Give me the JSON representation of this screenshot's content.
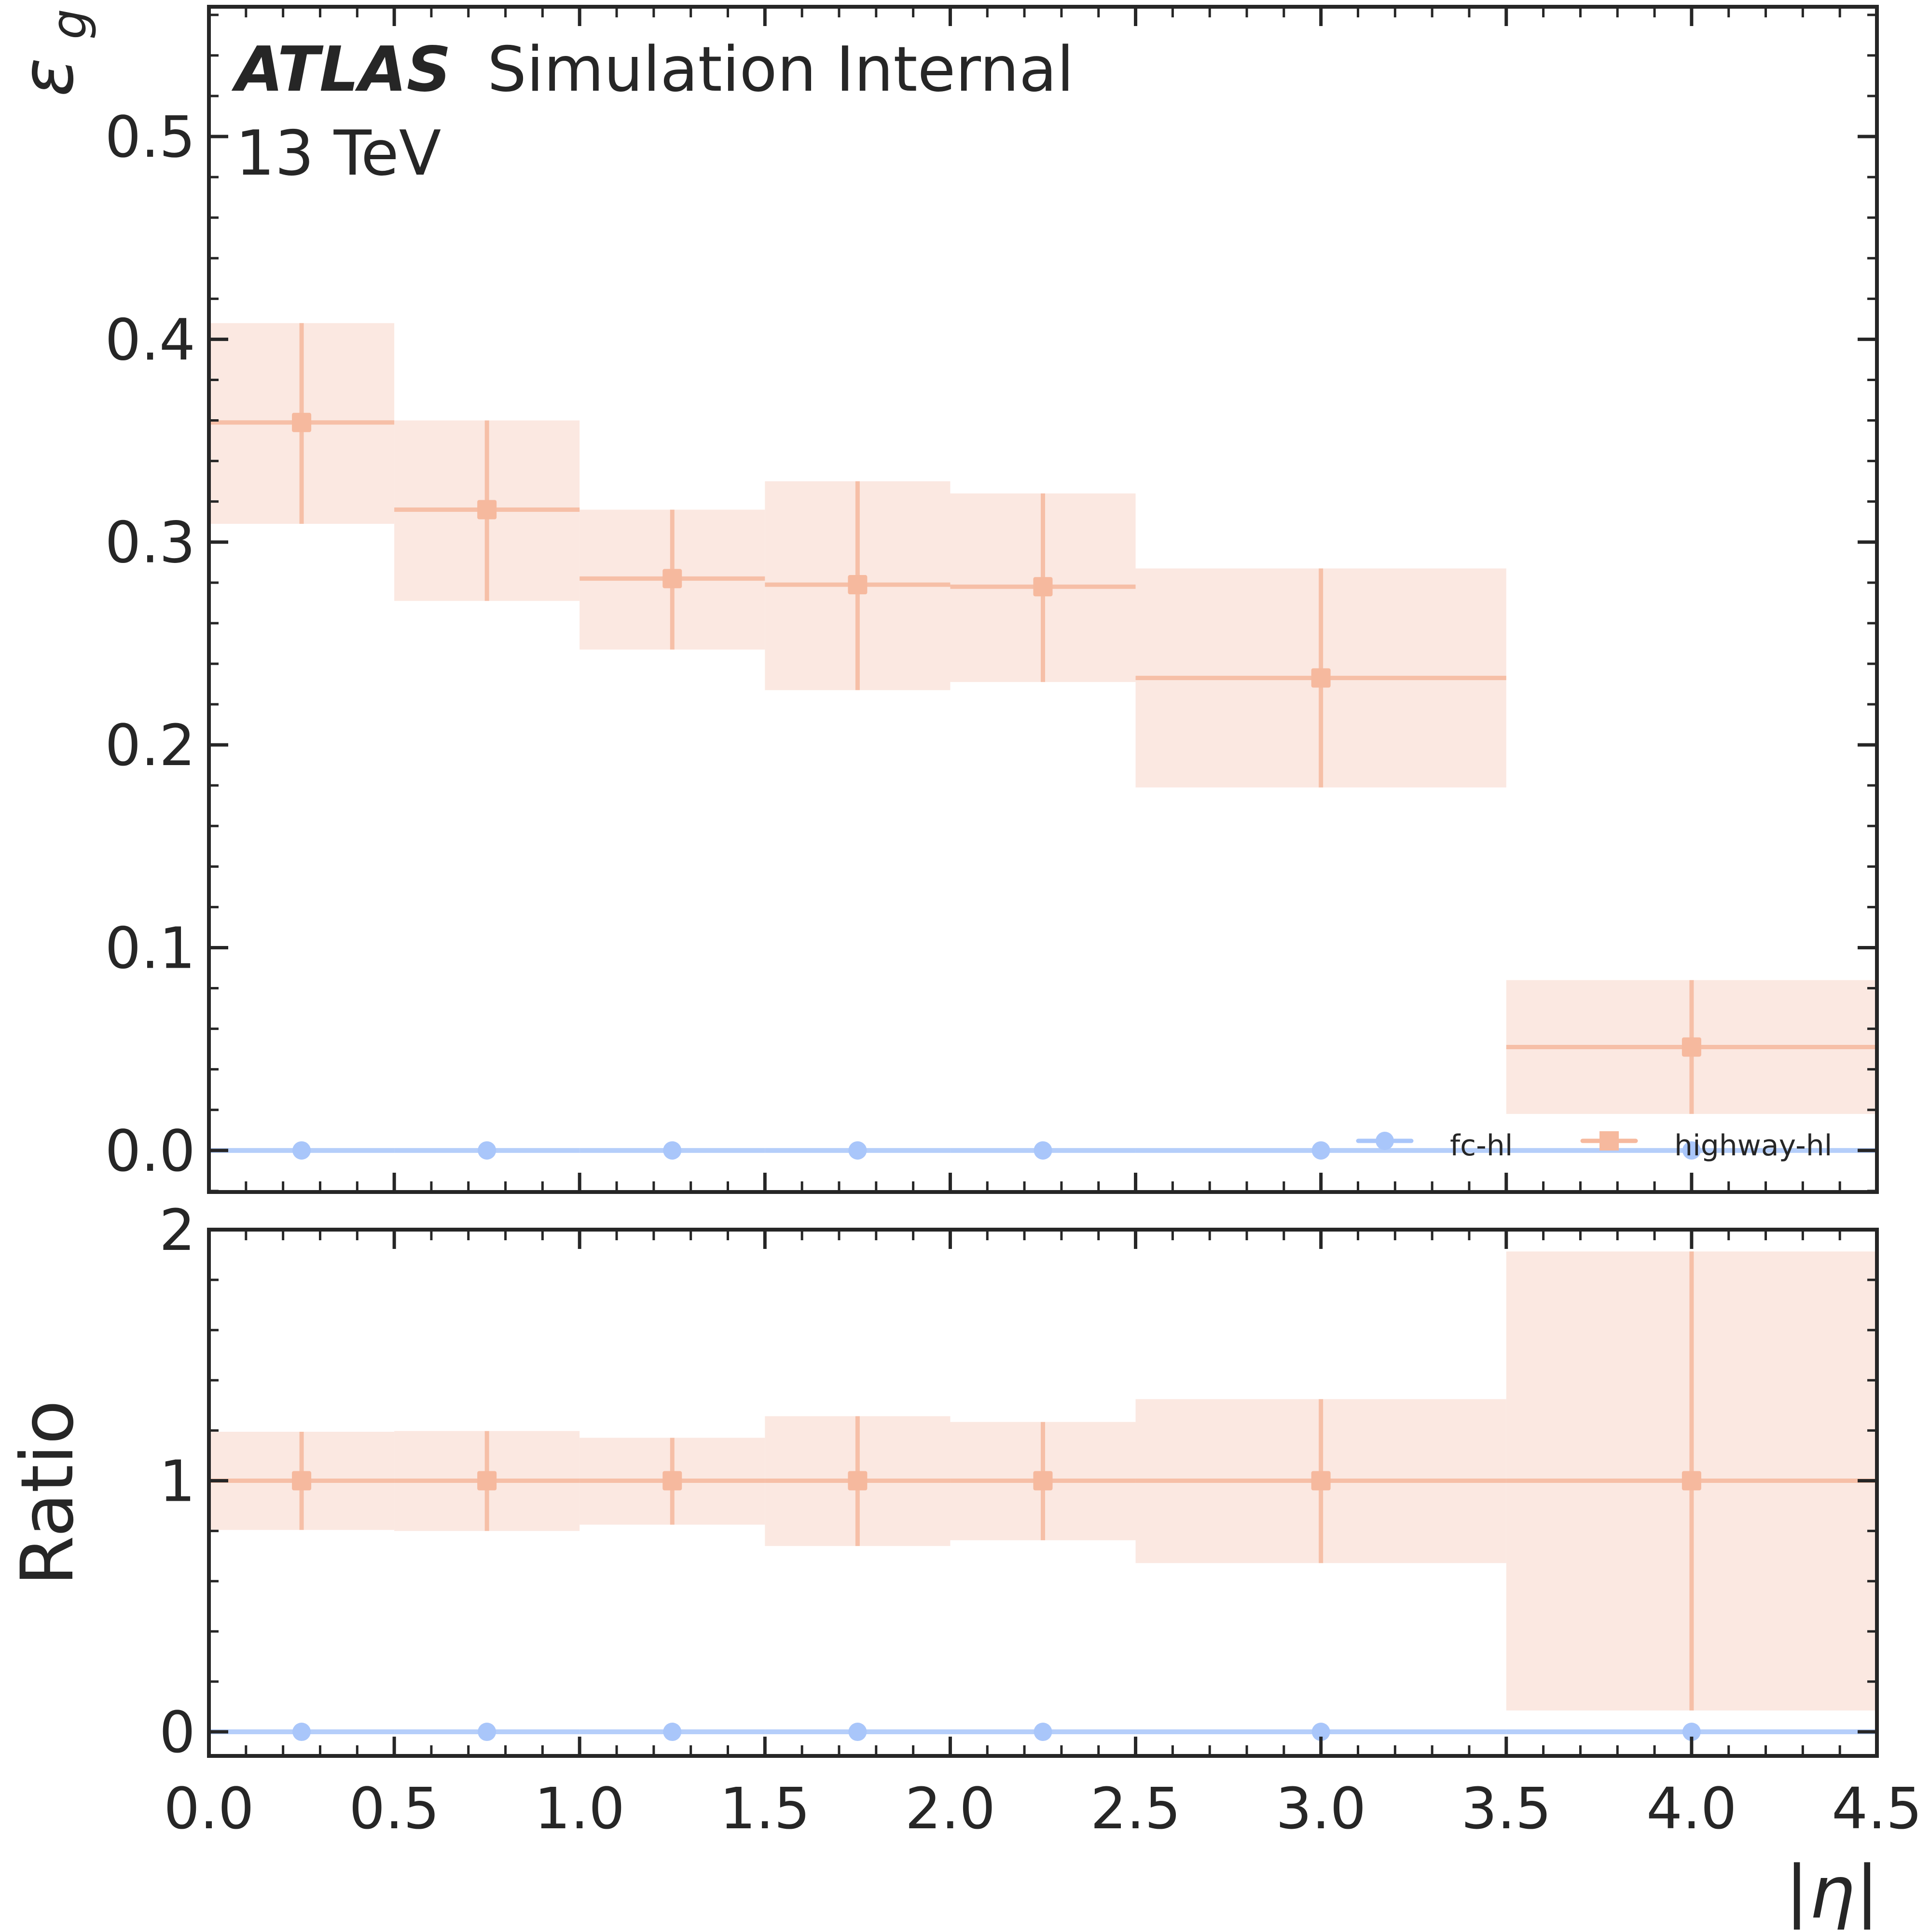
{
  "chart_data": [
    {
      "panel": "main",
      "type": "scatter",
      "title": "",
      "annotations": [
        {
          "bold_italic": "ATLAS",
          "text": "Simulation Internal"
        },
        {
          "text": "13 TeV"
        }
      ],
      "xlabel": "",
      "ylabel": "ε_g",
      "ylabel_main": "ε",
      "ylabel_sub": "g",
      "xlim": [
        0.0,
        4.5
      ],
      "ylim": [
        -0.0205,
        0.564
      ],
      "ytick_values": [
        0.0,
        0.1,
        0.2,
        0.3,
        0.4,
        0.5
      ],
      "ytick_labels": [
        "0.0",
        "0.1",
        "0.2",
        "0.3",
        "0.4",
        "0.5"
      ],
      "y_minor_step": 0.02,
      "grid": false,
      "legend": {
        "placement": "bottom-right",
        "ncols": 2,
        "entries": [
          {
            "label": "fc-hl",
            "marker": "circle",
            "color": "#a9c6fa"
          },
          {
            "label": "highway-hl",
            "marker": "square",
            "color": "#f6b99e"
          }
        ]
      },
      "bins": [
        [
          0.0,
          0.5
        ],
        [
          0.5,
          1.0
        ],
        [
          1.0,
          1.5
        ],
        [
          1.5,
          2.0
        ],
        [
          2.0,
          2.5
        ],
        [
          2.5,
          3.5
        ],
        [
          3.5,
          4.5
        ]
      ],
      "x": [
        0.25,
        0.75,
        1.25,
        1.75,
        2.25,
        3.0,
        4.0
      ],
      "series": [
        {
          "name": "fc-hl",
          "marker": "circle",
          "color": "#a9c6fa",
          "values": [
            0.0,
            0.0,
            0.0,
            0.0,
            0.0,
            0.0,
            0.0
          ],
          "err_low": [
            0.0,
            0.0,
            0.0,
            0.0,
            0.0,
            0.0,
            0.0
          ],
          "err_high": [
            0.0,
            0.0,
            0.0,
            0.0,
            0.0,
            0.0,
            0.0
          ]
        },
        {
          "name": "highway-hl",
          "marker": "square",
          "color": "#f6b99e",
          "band_color": "#fbe8e1",
          "values": [
            0.359,
            0.316,
            0.282,
            0.279,
            0.278,
            0.233,
            0.051
          ],
          "band_low": [
            0.309,
            0.271,
            0.247,
            0.227,
            0.231,
            0.179,
            0.018
          ],
          "band_high": [
            0.408,
            0.36,
            0.316,
            0.33,
            0.324,
            0.287,
            0.084
          ]
        }
      ]
    },
    {
      "panel": "ratio",
      "type": "scatter",
      "xlabel": "|η|",
      "ylabel": "Ratio",
      "xlim": [
        0.0,
        4.5
      ],
      "ylim": [
        -0.096,
        2.0
      ],
      "xtick_values": [
        0.0,
        0.5,
        1.0,
        1.5,
        2.0,
        2.5,
        3.0,
        3.5,
        4.0,
        4.5
      ],
      "xtick_labels": [
        "0.0",
        "0.5",
        "1.0",
        "1.5",
        "2.0",
        "2.5",
        "3.0",
        "3.5",
        "4.0",
        "4.5"
      ],
      "x_minor_step": 0.1,
      "ytick_values": [
        0,
        1,
        2
      ],
      "ytick_labels": [
        "0",
        "1",
        "2"
      ],
      "y_minor_step": 0.2,
      "grid": false,
      "bins": [
        [
          0.0,
          0.5
        ],
        [
          0.5,
          1.0
        ],
        [
          1.0,
          1.5
        ],
        [
          1.5,
          2.0
        ],
        [
          2.0,
          2.5
        ],
        [
          2.5,
          3.5
        ],
        [
          3.5,
          4.5
        ]
      ],
      "x": [
        0.25,
        0.75,
        1.25,
        1.75,
        2.25,
        3.0,
        4.0
      ],
      "series": [
        {
          "name": "fc-hl",
          "marker": "circle",
          "color": "#a9c6fa",
          "values": [
            0,
            0,
            0,
            0,
            0,
            0,
            0
          ]
        },
        {
          "name": "highway-hl",
          "marker": "square",
          "color": "#f6b99e",
          "band_color": "#fbe8e1",
          "values": [
            1,
            1,
            1,
            1,
            1,
            1,
            1
          ],
          "band_low": [
            0.804,
            0.8,
            0.825,
            0.74,
            0.763,
            0.672,
            0.085
          ],
          "band_high": [
            1.195,
            1.198,
            1.171,
            1.257,
            1.234,
            1.325,
            1.913
          ]
        }
      ]
    }
  ]
}
